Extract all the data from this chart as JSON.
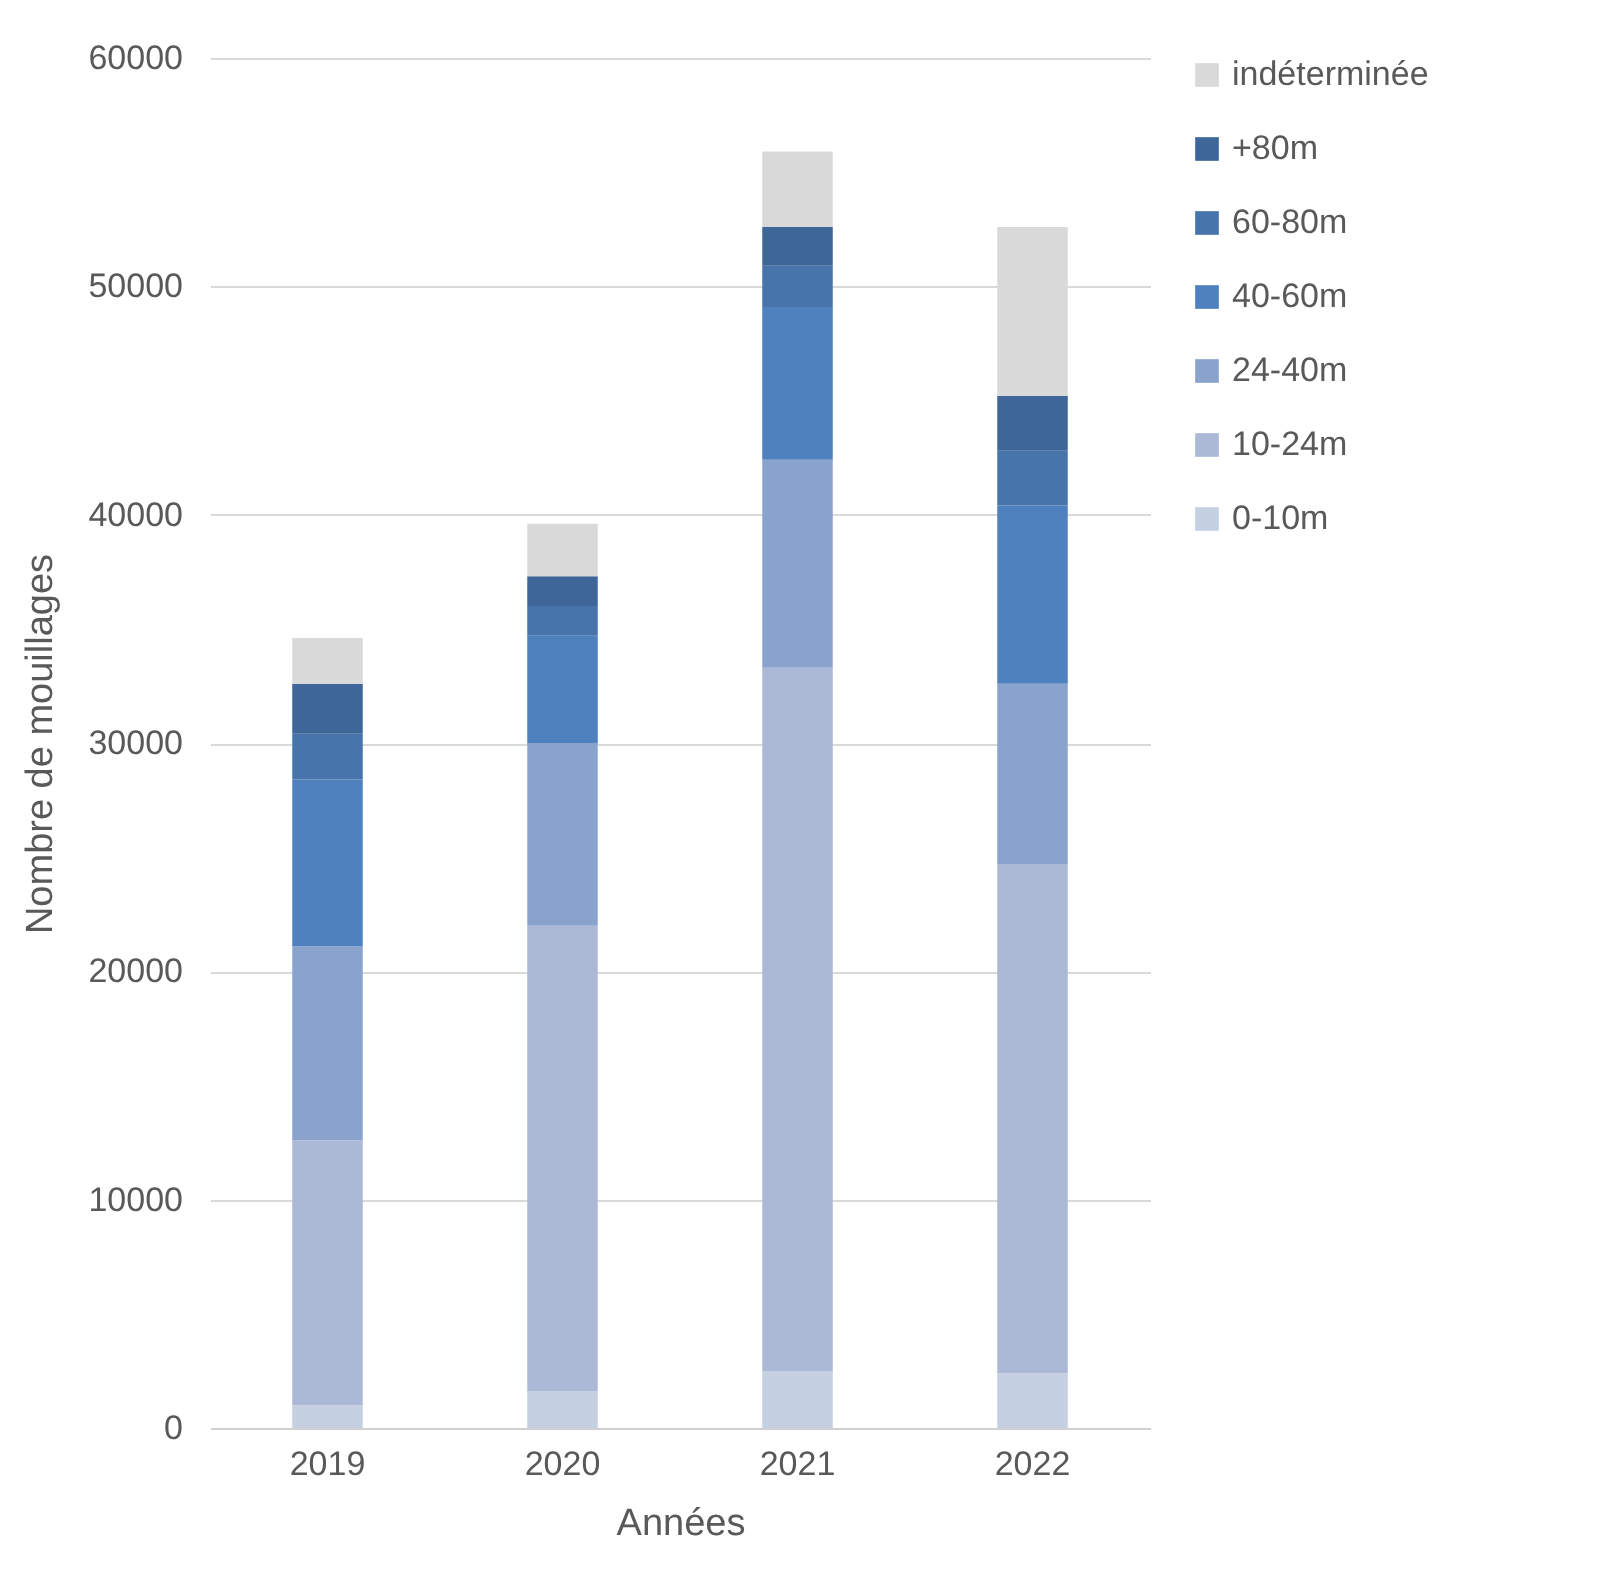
{
  "chart_data": {
    "type": "bar",
    "stacked": true,
    "xlabel": "Années",
    "ylabel": "Nombre de mouillages",
    "categories": [
      "2019",
      "2020",
      "2021",
      "2022"
    ],
    "series": [
      {
        "name": "0-10m",
        "color": "#c5d0e3",
        "values": [
          1000,
          1600,
          2500,
          2400
        ]
      },
      {
        "name": "10-24m",
        "color": "#abb9d6",
        "values": [
          11600,
          20400,
          30800,
          22300
        ]
      },
      {
        "name": "24-40m",
        "color": "#8aa3cc",
        "values": [
          8500,
          8000,
          9100,
          7900
        ]
      },
      {
        "name": "40-60m",
        "color": "#4e81bd",
        "values": [
          7300,
          4700,
          6700,
          7800
        ]
      },
      {
        "name": "60-80m",
        "color": "#4674ab",
        "values": [
          2000,
          1300,
          1800,
          2400
        ]
      },
      {
        "name": "+80m",
        "color": "#3e6698",
        "values": [
          2200,
          1300,
          1700,
          2400
        ]
      },
      {
        "name": "indéterminée",
        "color": "#d9d9d9",
        "values": [
          2000,
          2300,
          3300,
          7400
        ]
      }
    ],
    "ylim": [
      0,
      60000
    ],
    "yticks": [
      0,
      10000,
      20000,
      30000,
      40000,
      50000,
      60000
    ],
    "grid": "y",
    "legend": "right"
  }
}
